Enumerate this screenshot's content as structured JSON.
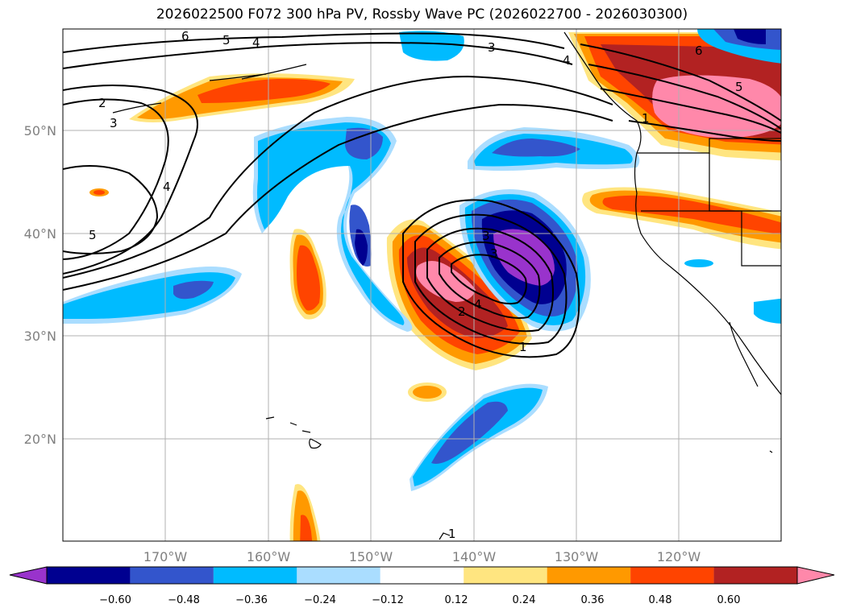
{
  "title": "2026022500 F072 300 hPa PV, Rossby Wave PC (2026022700 - 2026030300)",
  "map": {
    "lat_ticks": [
      "50°N",
      "40°N",
      "30°N",
      "20°N"
    ],
    "lon_ticks": [
      "170°W",
      "160°W",
      "150°W",
      "140°W",
      "130°W",
      "120°W"
    ],
    "contour_labels": [
      "6",
      "5",
      "4",
      "3",
      "2",
      "3",
      "5",
      "4",
      "6",
      "5",
      "1",
      "4",
      "3",
      "3",
      "2",
      "4",
      "1",
      "1"
    ]
  },
  "colorbar": {
    "labels": [
      "−0.60",
      "−0.48",
      "−0.36",
      "−0.24",
      "−0.12",
      "0.12",
      "0.24",
      "0.36",
      "0.48",
      "0.60"
    ],
    "colors": [
      "#9933cc",
      "#000090",
      "#3355cc",
      "#00bbff",
      "#aaddff",
      "#ffffff",
      "#ffe580",
      "#ff9900",
      "#ff4400",
      "#b22222",
      "#ff88aa"
    ]
  }
}
